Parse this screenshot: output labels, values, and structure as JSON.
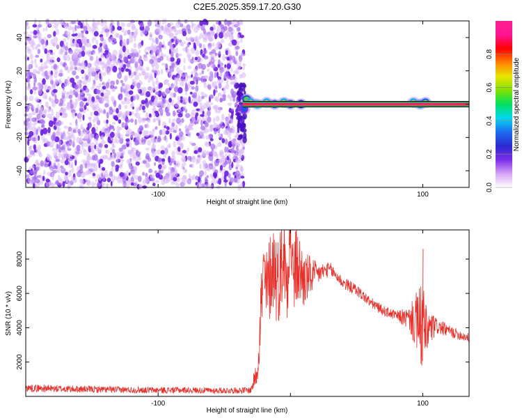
{
  "title": "C2E5.2025.359.17.20.G30",
  "chart_data": [
    {
      "type": "heatmap",
      "xlabel": "Height of straight line (km)",
      "ylabel": "Frequency (Hz)",
      "xlim": [
        -200,
        135
      ],
      "ylim": [
        -50,
        50
      ],
      "xticks": [
        -100,
        0,
        100
      ],
      "xtick_labels": [
        "-100",
        "",
        "100"
      ],
      "yticks": [
        -40,
        -20,
        0,
        20,
        40
      ],
      "ytick_labels": [
        "-40",
        "-20",
        "0",
        "20",
        "40"
      ],
      "noise_region_x": [
        -200,
        -35
      ],
      "signal_line": {
        "x_start": -36,
        "x_end": 135,
        "frequency": 0,
        "amplitude": 0.95
      },
      "signal_blobs": [
        {
          "x": -35,
          "y": -3,
          "amplitude": 0.3
        },
        {
          "x": -33,
          "y": 3,
          "amplitude": 0.55
        },
        {
          "x": -30,
          "y": 1,
          "amplitude": 0.7
        },
        {
          "x": -25,
          "y": 0,
          "amplitude": 0.75
        },
        {
          "x": -18,
          "y": 1,
          "amplitude": 0.7
        },
        {
          "x": -12,
          "y": 0,
          "amplitude": 0.65
        },
        {
          "x": -5,
          "y": 1,
          "amplitude": 0.7
        },
        {
          "x": 0,
          "y": 0,
          "amplitude": 0.6
        },
        {
          "x": 8,
          "y": 0,
          "amplitude": 0.5
        },
        {
          "x": 93,
          "y": 1,
          "amplitude": 0.7
        },
        {
          "x": 98,
          "y": 0,
          "amplitude": 0.7
        },
        {
          "x": 102,
          "y": 1,
          "amplitude": 0.6
        }
      ]
    },
    {
      "type": "line",
      "xlabel": "Height of straight line (km)",
      "ylabel": "SNR (10 * v/v)",
      "xlim": [
        -200,
        135
      ],
      "ylim": [
        0,
        9700
      ],
      "xticks": [
        -100,
        0,
        100
      ],
      "xtick_labels": [
        "-100",
        "",
        "100"
      ],
      "yticks": [
        2000,
        4000,
        6000,
        8000
      ],
      "ytick_labels": [
        "2000",
        "4000",
        "6000",
        "8000"
      ],
      "series": [
        {
          "color": "#e8302a",
          "x": [
            -200,
            -180,
            -160,
            -140,
            -120,
            -100,
            -80,
            -60,
            -40,
            -30,
            -25,
            -22,
            -20,
            -18,
            -15,
            -12,
            -10,
            -5,
            -3,
            -1,
            0,
            2,
            5,
            10,
            15,
            20,
            25,
            30,
            35,
            40,
            50,
            60,
            70,
            80,
            90,
            95,
            98,
            100,
            102,
            105,
            110,
            120,
            135
          ],
          "y": [
            500,
            450,
            420,
            400,
            380,
            360,
            370,
            340,
            350,
            360,
            1500,
            5500,
            7000,
            6000,
            7200,
            7800,
            6500,
            8400,
            6500,
            8800,
            9500,
            7000,
            7600,
            6800,
            7000,
            7100,
            7300,
            7400,
            7000,
            6600,
            6200,
            5500,
            5000,
            4700,
            4500,
            4300,
            4000,
            4400,
            3600,
            3900,
            4100,
            3800,
            3400
          ],
          "noise_amplitude": [
            220,
            220,
            200,
            200,
            190,
            190,
            190,
            180,
            180,
            200,
            800,
            2400,
            2600,
            2600,
            2600,
            2800,
            2600,
            2800,
            2800,
            2600,
            2400,
            2400,
            2400,
            1800,
            1200,
            700,
            500,
            420,
            380,
            360,
            340,
            320,
            300,
            300,
            700,
            1800,
            2500,
            2700,
            1800,
            1200,
            500,
            340,
            280
          ],
          "spikes": [
            {
              "x": -1,
              "y": 9700
            },
            {
              "x": 3,
              "y": 8300
            },
            {
              "x": 100,
              "y": 8600
            },
            {
              "x": 99,
              "y": 1800
            }
          ]
        }
      ]
    }
  ],
  "colorbar": {
    "label": "Normalized spectral amplitude",
    "ticks": [
      0.0,
      0.2,
      0.4,
      0.6,
      0.8
    ],
    "tick_labels": [
      "0.0",
      "0.2",
      "0.4",
      "0.6",
      "0.8"
    ],
    "range": [
      0,
      1
    ],
    "colors": [
      "#ffffff",
      "#d6a3f5",
      "#7a2be8",
      "#2a2ad0",
      "#1e6cf0",
      "#00d8f0",
      "#00e060",
      "#80e000",
      "#e8e800",
      "#ff8000",
      "#ff0000",
      "#ff1493",
      "#ff2090"
    ]
  }
}
